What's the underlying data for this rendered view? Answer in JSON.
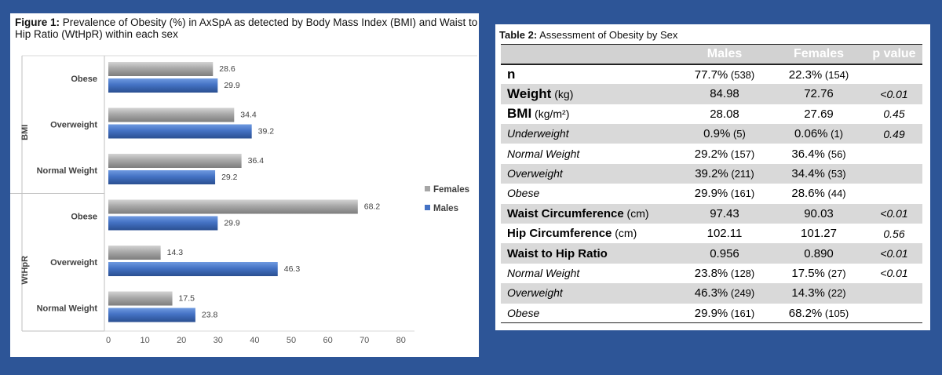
{
  "figure": {
    "title_bold": "Figure 1:",
    "title_rest": " Prevalence of Obesity (%) in AxSpA as detected by Body Mass Index (BMI) and Waist to Hip Ratio (WtHpR) within each sex"
  },
  "chart_data": {
    "type": "bar",
    "orientation": "horizontal",
    "groups": [
      {
        "name": "BMI",
        "categories": [
          "Obese",
          "Overweight",
          "Normal Weight"
        ]
      },
      {
        "name": "WtHpR",
        "categories": [
          "Obese",
          "Overweight",
          "Normal Weight"
        ]
      }
    ],
    "series": [
      {
        "name": "Females",
        "color": "#a6a6a6",
        "values": [
          28.6,
          34.4,
          36.4,
          68.2,
          14.3,
          17.5
        ]
      },
      {
        "name": "Males",
        "color": "#4472c4",
        "values": [
          29.9,
          39.2,
          29.2,
          29.9,
          46.3,
          23.8
        ]
      }
    ],
    "xlim": [
      0,
      80
    ],
    "xticks": [
      0,
      10,
      20,
      30,
      40,
      50,
      60,
      70,
      80
    ],
    "legend": "right",
    "grid": false
  },
  "table": {
    "title_bold": "Table 2:",
    "title_rest": " Assessment of Obesity by Sex",
    "headers": [
      "",
      "Males",
      "Females",
      "p value"
    ],
    "rows": [
      {
        "label": "n",
        "unit": "",
        "style": "bold big",
        "males": "77.7%",
        "males_n": " (538)",
        "females": "22.3%",
        "females_n": " (154)",
        "p": ""
      },
      {
        "label": "Weight",
        "unit": " (kg)",
        "style": "bold big",
        "males": "84.98",
        "males_n": "",
        "females": "72.76",
        "females_n": "",
        "p": "<0.01"
      },
      {
        "label": "BMI",
        "unit": " (kg/m²)",
        "style": "bold big",
        "males": "28.08",
        "males_n": "",
        "females": "27.69",
        "females_n": "",
        "p": "0.45"
      },
      {
        "label": "Underweight",
        "unit": "",
        "style": "italic",
        "males": "0.9%",
        "males_n": " (5)",
        "females": "0.06%",
        "females_n": " (1)",
        "p": "0.49"
      },
      {
        "label": "Normal Weight",
        "unit": "",
        "style": "italic",
        "males": "29.2%",
        "males_n": " (157)",
        "females": "36.4%",
        "females_n": " (56)",
        "p": ""
      },
      {
        "label": "Overweight",
        "unit": "",
        "style": "italic",
        "males": "39.2%",
        "males_n": " (211)",
        "females": "34.4%",
        "females_n": " (53)",
        "p": ""
      },
      {
        "label": "Obese",
        "unit": "",
        "style": "italic",
        "males": "29.9%",
        "males_n": " (161)",
        "females": "28.6%",
        "females_n": " (44)",
        "p": ""
      },
      {
        "label": "Waist Circumference",
        "unit": " (cm)",
        "style": "bold",
        "males": "97.43",
        "males_n": "",
        "females": "90.03",
        "females_n": "",
        "p": "<0.01"
      },
      {
        "label": "Hip Circumference",
        "unit": " (cm)",
        "style": "bold",
        "males": "102.11",
        "males_n": "",
        "females": "101.27",
        "females_n": "",
        "p": "0.56"
      },
      {
        "label": "Waist to Hip Ratio",
        "unit": "",
        "style": "bold",
        "males": "0.956",
        "males_n": "",
        "females": "0.890",
        "females_n": "",
        "p": "<0.01"
      },
      {
        "label": "Normal Weight",
        "unit": "",
        "style": "italic",
        "males": "23.8%",
        "males_n": " (128)",
        "females": "17.5%",
        "females_n": " (27)",
        "p": "<0.01"
      },
      {
        "label": "Overweight",
        "unit": "",
        "style": "italic",
        "males": "46.3%",
        "males_n": " (249)",
        "females": "14.3%",
        "females_n": " (22)",
        "p": ""
      },
      {
        "label": "Obese",
        "unit": "",
        "style": "italic",
        "males": "29.9%",
        "males_n": " (161)",
        "females": "68.2%",
        "females_n": " (105)",
        "p": ""
      }
    ]
  }
}
